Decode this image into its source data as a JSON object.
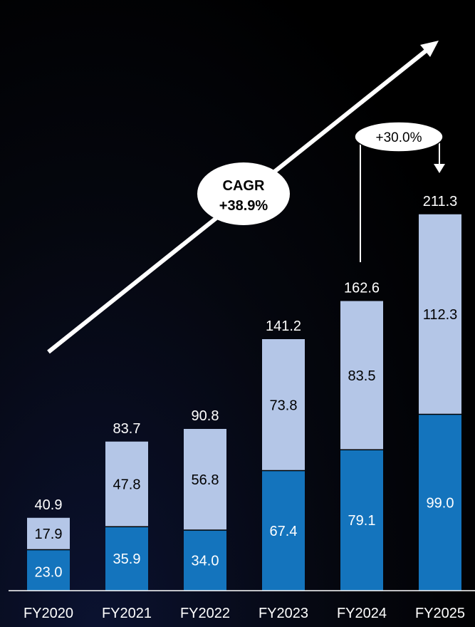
{
  "chart_data": {
    "type": "bar",
    "stacked": true,
    "categories": [
      "FY2020",
      "FY2021",
      "FY2022",
      "FY2023",
      "FY2024",
      "FY2025"
    ],
    "series": [
      {
        "values": [
          23.0,
          35.9,
          34.0,
          67.4,
          79.1,
          99.0
        ],
        "value_labels": [
          "23.0",
          "35.9",
          "34.0",
          "67.4",
          "79.1",
          "99.0"
        ],
        "color": "#1474bd"
      },
      {
        "values": [
          17.9,
          47.8,
          56.8,
          73.8,
          83.5,
          112.3
        ],
        "value_labels": [
          "17.9",
          "47.8",
          "56.8",
          "73.8",
          "83.5",
          "112.3"
        ],
        "color": "#b4c6e7"
      }
    ],
    "totals": [
      40.9,
      83.7,
      90.8,
      141.2,
      162.6,
      211.3
    ],
    "total_labels": [
      "40.9",
      "83.7",
      "90.8",
      "141.2",
      "162.6",
      "211.3"
    ],
    "ylim": [
      0,
      230
    ],
    "grid": false,
    "legend": "none"
  },
  "annotations": {
    "cagr_line1": "CAGR",
    "cagr_line2": "+38.9%",
    "growth": "+30.0%"
  },
  "colors": {
    "background": "#000000",
    "bottom_series": "#1474bd",
    "top_series": "#b4c6e7",
    "text_light": "#ffffff",
    "text_dark": "#000000"
  }
}
